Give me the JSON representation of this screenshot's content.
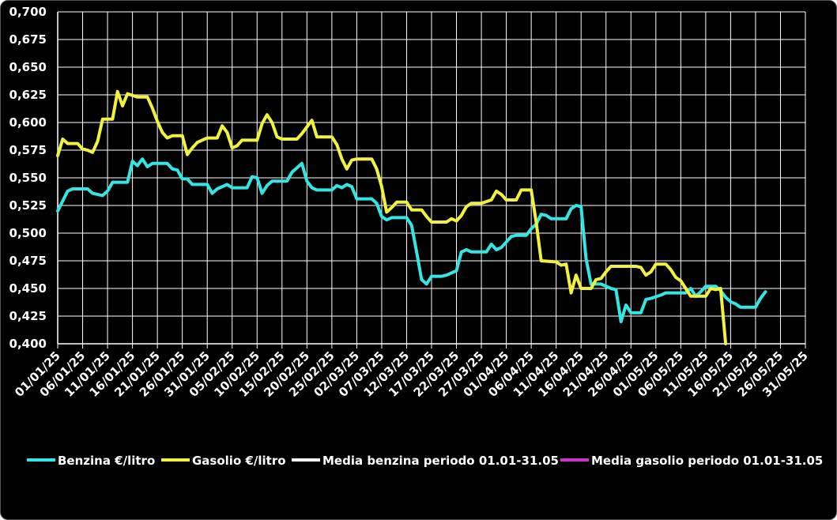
{
  "chart_data": {
    "type": "line",
    "title": "",
    "xlabel": "",
    "ylabel": "",
    "ylim": [
      0.4,
      0.7
    ],
    "y_ticks": [
      "0,400",
      "0,425",
      "0,450",
      "0,475",
      "0,500",
      "0,525",
      "0,550",
      "0,575",
      "0,600",
      "0,625",
      "0,650",
      "0,675",
      "0,700"
    ],
    "x_range": [
      "2025-01-01",
      "2025-05-31"
    ],
    "x_ticks": [
      "01/01/25",
      "06/01/25",
      "11/01/25",
      "16/01/25",
      "21/01/25",
      "26/01/25",
      "31/01/25",
      "05/02/25",
      "10/02/25",
      "15/02/25",
      "20/02/25",
      "25/02/25",
      "02/03/25",
      "07/03/25",
      "12/03/25",
      "17/03/25",
      "22/03/25",
      "27/03/25",
      "01/04/25",
      "06/04/25",
      "11/04/25",
      "16/04/25",
      "21/04/25",
      "26/04/25",
      "01/05/25",
      "06/05/25",
      "11/05/25",
      "16/05/25",
      "21/05/25",
      "26/05/25",
      "31/05/25"
    ],
    "grid": true,
    "legend_position": "bottom",
    "legend": [
      {
        "label": "Benzina €/litro",
        "color": "#33e6e6"
      },
      {
        "label": "Gasolio €/litro",
        "color": "#f2f23d"
      },
      {
        "label": "Media benzina periodo 01.01-31.05",
        "color": "#ffffff"
      },
      {
        "label": "Media gasolio periodo 01.01-31.05",
        "color": "#cc33cc"
      }
    ],
    "series": [
      {
        "name": "Benzina €/litro",
        "color": "#33e6e6",
        "points": [
          [
            "2025-01-01",
            0.52
          ],
          [
            "2025-01-03",
            0.538
          ],
          [
            "2025-01-04",
            0.54
          ],
          [
            "2025-01-07",
            0.54
          ],
          [
            "2025-01-08",
            0.536
          ],
          [
            "2025-01-10",
            0.534
          ],
          [
            "2025-01-11",
            0.538
          ],
          [
            "2025-01-12",
            0.546
          ],
          [
            "2025-01-15",
            0.546
          ],
          [
            "2025-01-16",
            0.565
          ],
          [
            "2025-01-17",
            0.561
          ],
          [
            "2025-01-18",
            0.567
          ],
          [
            "2025-01-19",
            0.56
          ],
          [
            "2025-01-20",
            0.563
          ],
          [
            "2025-01-23",
            0.563
          ],
          [
            "2025-01-24",
            0.558
          ],
          [
            "2025-01-25",
            0.557
          ],
          [
            "2025-01-26",
            0.549
          ],
          [
            "2025-01-27",
            0.549
          ],
          [
            "2025-01-28",
            0.544
          ],
          [
            "2025-01-31",
            0.544
          ],
          [
            "2025-02-01",
            0.536
          ],
          [
            "2025-02-02",
            0.54
          ],
          [
            "2025-02-04",
            0.544
          ],
          [
            "2025-02-05",
            0.541
          ],
          [
            "2025-02-08",
            0.541
          ],
          [
            "2025-02-09",
            0.551
          ],
          [
            "2025-02-10",
            0.55
          ],
          [
            "2025-02-11",
            0.536
          ],
          [
            "2025-02-12",
            0.543
          ],
          [
            "2025-02-13",
            0.547
          ],
          [
            "2025-02-16",
            0.547
          ],
          [
            "2025-02-17",
            0.555
          ],
          [
            "2025-02-19",
            0.563
          ],
          [
            "2025-02-20",
            0.547
          ],
          [
            "2025-02-21",
            0.541
          ],
          [
            "2025-02-22",
            0.539
          ],
          [
            "2025-02-25",
            0.539
          ],
          [
            "2025-02-26",
            0.543
          ],
          [
            "2025-02-27",
            0.541
          ],
          [
            "2025-02-28",
            0.544
          ],
          [
            "2025-03-01",
            0.542
          ],
          [
            "2025-03-02",
            0.531
          ],
          [
            "2025-03-05",
            0.531
          ],
          [
            "2025-03-06",
            0.527
          ],
          [
            "2025-03-07",
            0.515
          ],
          [
            "2025-03-08",
            0.512
          ],
          [
            "2025-03-09",
            0.514
          ],
          [
            "2025-03-12",
            0.514
          ],
          [
            "2025-03-13",
            0.507
          ],
          [
            "2025-03-14",
            0.483
          ],
          [
            "2025-03-15",
            0.458
          ],
          [
            "2025-03-16",
            0.454
          ],
          [
            "2025-03-17",
            0.461
          ],
          [
            "2025-03-19",
            0.461
          ],
          [
            "2025-03-20",
            0.462
          ],
          [
            "2025-03-22",
            0.466
          ],
          [
            "2025-03-23",
            0.483
          ],
          [
            "2025-03-24",
            0.485
          ],
          [
            "2025-03-25",
            0.483
          ],
          [
            "2025-03-28",
            0.483
          ],
          [
            "2025-03-29",
            0.49
          ],
          [
            "2025-03-30",
            0.485
          ],
          [
            "2025-03-31",
            0.487
          ],
          [
            "2025-04-01",
            0.492
          ],
          [
            "2025-04-02",
            0.497
          ],
          [
            "2025-04-03",
            0.498
          ],
          [
            "2025-04-05",
            0.498
          ],
          [
            "2025-04-06",
            0.504
          ],
          [
            "2025-04-07",
            0.508
          ],
          [
            "2025-04-08",
            0.517
          ],
          [
            "2025-04-09",
            0.516
          ],
          [
            "2025-04-10",
            0.513
          ],
          [
            "2025-04-13",
            0.513
          ],
          [
            "2025-04-14",
            0.522
          ],
          [
            "2025-04-15",
            0.525
          ],
          [
            "2025-04-16",
            0.524
          ],
          [
            "2025-04-17",
            0.477
          ],
          [
            "2025-04-18",
            0.454
          ],
          [
            "2025-04-20",
            0.454
          ],
          [
            "2025-04-22",
            0.45
          ],
          [
            "2025-04-23",
            0.449
          ],
          [
            "2025-04-24",
            0.42
          ],
          [
            "2025-04-25",
            0.435
          ],
          [
            "2025-04-26",
            0.428
          ],
          [
            "2025-04-28",
            0.428
          ],
          [
            "2025-04-29",
            0.44
          ],
          [
            "2025-04-30",
            0.441
          ],
          [
            "2025-05-02",
            0.444
          ],
          [
            "2025-05-03",
            0.446
          ],
          [
            "2025-05-07",
            0.446
          ],
          [
            "2025-05-08",
            0.45
          ],
          [
            "2025-05-09",
            0.443
          ],
          [
            "2025-05-10",
            0.447
          ],
          [
            "2025-05-11",
            0.452
          ],
          [
            "2025-05-13",
            0.452
          ],
          [
            "2025-05-14",
            0.448
          ],
          [
            "2025-05-15",
            0.442
          ],
          [
            "2025-05-16",
            0.438
          ],
          [
            "2025-05-17",
            0.436
          ],
          [
            "2025-05-18",
            0.433
          ],
          [
            "2025-05-21",
            0.433
          ],
          [
            "2025-05-22",
            0.441
          ],
          [
            "2025-05-23",
            0.447
          ]
        ]
      },
      {
        "name": "Gasolio €/litro",
        "color": "#f2f23d",
        "points": [
          [
            "2025-01-01",
            0.57
          ],
          [
            "2025-01-02",
            0.585
          ],
          [
            "2025-01-03",
            0.581
          ],
          [
            "2025-01-05",
            0.581
          ],
          [
            "2025-01-06",
            0.576
          ],
          [
            "2025-01-07",
            0.575
          ],
          [
            "2025-01-08",
            0.573
          ],
          [
            "2025-01-09",
            0.583
          ],
          [
            "2025-01-10",
            0.603
          ],
          [
            "2025-01-12",
            0.603
          ],
          [
            "2025-01-13",
            0.628
          ],
          [
            "2025-01-14",
            0.615
          ],
          [
            "2025-01-15",
            0.626
          ],
          [
            "2025-01-17",
            0.623
          ],
          [
            "2025-01-19",
            0.623
          ],
          [
            "2025-01-20",
            0.613
          ],
          [
            "2025-01-21",
            0.601
          ],
          [
            "2025-01-22",
            0.591
          ],
          [
            "2025-01-23",
            0.586
          ],
          [
            "2025-01-24",
            0.588
          ],
          [
            "2025-01-26",
            0.588
          ],
          [
            "2025-01-27",
            0.571
          ],
          [
            "2025-01-28",
            0.577
          ],
          [
            "2025-01-29",
            0.582
          ],
          [
            "2025-01-31",
            0.586
          ],
          [
            "2025-02-02",
            0.586
          ],
          [
            "2025-02-03",
            0.597
          ],
          [
            "2025-02-04",
            0.591
          ],
          [
            "2025-02-05",
            0.577
          ],
          [
            "2025-02-06",
            0.579
          ],
          [
            "2025-02-07",
            0.584
          ],
          [
            "2025-02-10",
            0.584
          ],
          [
            "2025-02-11",
            0.599
          ],
          [
            "2025-02-12",
            0.607
          ],
          [
            "2025-02-13",
            0.6
          ],
          [
            "2025-02-14",
            0.587
          ],
          [
            "2025-02-15",
            0.585
          ],
          [
            "2025-02-18",
            0.585
          ],
          [
            "2025-02-19",
            0.59
          ],
          [
            "2025-02-21",
            0.602
          ],
          [
            "2025-02-22",
            0.587
          ],
          [
            "2025-02-25",
            0.587
          ],
          [
            "2025-02-26",
            0.58
          ],
          [
            "2025-02-27",
            0.567
          ],
          [
            "2025-02-28",
            0.558
          ],
          [
            "2025-03-01",
            0.566
          ],
          [
            "2025-03-02",
            0.567
          ],
          [
            "2025-03-05",
            0.567
          ],
          [
            "2025-03-06",
            0.558
          ],
          [
            "2025-03-07",
            0.542
          ],
          [
            "2025-03-08",
            0.519
          ],
          [
            "2025-03-09",
            0.523
          ],
          [
            "2025-03-10",
            0.528
          ],
          [
            "2025-03-12",
            0.528
          ],
          [
            "2025-03-13",
            0.521
          ],
          [
            "2025-03-15",
            0.521
          ],
          [
            "2025-03-16",
            0.515
          ],
          [
            "2025-03-17",
            0.51
          ],
          [
            "2025-03-20",
            0.51
          ],
          [
            "2025-03-21",
            0.513
          ],
          [
            "2025-03-22",
            0.511
          ],
          [
            "2025-03-23",
            0.516
          ],
          [
            "2025-03-24",
            0.524
          ],
          [
            "2025-03-25",
            0.527
          ],
          [
            "2025-03-27",
            0.527
          ],
          [
            "2025-03-29",
            0.53
          ],
          [
            "2025-03-30",
            0.538
          ],
          [
            "2025-03-31",
            0.535
          ],
          [
            "2025-04-01",
            0.53
          ],
          [
            "2025-04-03",
            0.53
          ],
          [
            "2025-04-04",
            0.539
          ],
          [
            "2025-04-06",
            0.539
          ],
          [
            "2025-04-07",
            0.51
          ],
          [
            "2025-04-08",
            0.475
          ],
          [
            "2025-04-11",
            0.474
          ],
          [
            "2025-04-12",
            0.471
          ],
          [
            "2025-04-13",
            0.472
          ],
          [
            "2025-04-14",
            0.446
          ],
          [
            "2025-04-15",
            0.462
          ],
          [
            "2025-04-16",
            0.45
          ],
          [
            "2025-04-18",
            0.45
          ],
          [
            "2025-04-19",
            0.458
          ],
          [
            "2025-04-20",
            0.459
          ],
          [
            "2025-04-21",
            0.465
          ],
          [
            "2025-04-22",
            0.47
          ],
          [
            "2025-04-27",
            0.47
          ],
          [
            "2025-04-28",
            0.469
          ],
          [
            "2025-04-29",
            0.462
          ],
          [
            "2025-04-30",
            0.465
          ],
          [
            "2025-05-01",
            0.472
          ],
          [
            "2025-05-03",
            0.472
          ],
          [
            "2025-05-04",
            0.467
          ],
          [
            "2025-05-05",
            0.46
          ],
          [
            "2025-05-06",
            0.457
          ],
          [
            "2025-05-07",
            0.45
          ],
          [
            "2025-05-08",
            0.443
          ],
          [
            "2025-05-11",
            0.443
          ],
          [
            "2025-05-12",
            0.45
          ],
          [
            "2025-05-13",
            0.449
          ],
          [
            "2025-05-14",
            0.45
          ],
          [
            "2025-05-15",
            0.4
          ]
        ]
      },
      {
        "name": "Media benzina periodo 01.01-31.05",
        "color": "#ffffff",
        "points": []
      },
      {
        "name": "Media gasolio periodo 01.01-31.05",
        "color": "#cc33cc",
        "points": []
      }
    ]
  }
}
